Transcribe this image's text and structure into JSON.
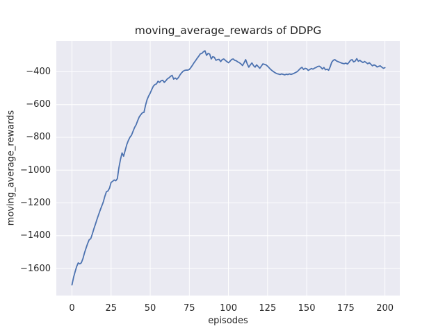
{
  "figure": {
    "title": "moving_average_rewards of DDPG",
    "xlabel": "episodes",
    "ylabel": "moving_average_rewards"
  },
  "chart_data": {
    "type": "line",
    "title": "moving_average_rewards of DDPG",
    "xlabel": "episodes",
    "ylabel": "moving_average_rewards",
    "xlim": [
      -10,
      209.5
    ],
    "ylim": [
      -1765,
      -212
    ],
    "grid": true,
    "legend": false,
    "xticks": {
      "values": [
        0,
        25,
        50,
        75,
        100,
        125,
        150,
        175,
        200
      ],
      "labels": [
        "0",
        "25",
        "50",
        "75",
        "100",
        "125",
        "150",
        "175",
        "200"
      ]
    },
    "yticks": {
      "values": [
        -400,
        -600,
        -800,
        -1000,
        -1200,
        -1400,
        -1600
      ],
      "labels": [
        "−400",
        "−600",
        "−800",
        "−1000",
        "−1200",
        "−1400",
        "−1600"
      ]
    },
    "style": {
      "axes_bg": "#EAEAF2",
      "grid_color": "#FFFFFF",
      "text_color": "#262626",
      "figure_bg": "#FFFFFF",
      "line_color": "#4C72B0",
      "line_width": 1.8
    },
    "series": [
      {
        "name": "moving_average_rewards",
        "color": "#4C72B0",
        "x": [
          0,
          1,
          2,
          3,
          4,
          5,
          6,
          7,
          8,
          9,
          10,
          11,
          12,
          13,
          14,
          15,
          16,
          17,
          18,
          19,
          20,
          21,
          22,
          23,
          24,
          25,
          26,
          27,
          28,
          29,
          30,
          31,
          32,
          33,
          34,
          35,
          36,
          37,
          38,
          39,
          40,
          41,
          42,
          43,
          44,
          45,
          46,
          47,
          48,
          49,
          50,
          51,
          52,
          53,
          54,
          55,
          56,
          57,
          58,
          59,
          60,
          61,
          62,
          63,
          64,
          65,
          66,
          67,
          68,
          69,
          70,
          71,
          72,
          73,
          74,
          75,
          76,
          77,
          78,
          79,
          80,
          81,
          82,
          83,
          84,
          85,
          86,
          87,
          88,
          89,
          90,
          91,
          92,
          93,
          94,
          95,
          96,
          97,
          98,
          99,
          100,
          101,
          102,
          103,
          104,
          105,
          106,
          107,
          108,
          109,
          110,
          111,
          112,
          113,
          114,
          115,
          116,
          117,
          118,
          119,
          120,
          121,
          122,
          123,
          124,
          125,
          126,
          127,
          128,
          129,
          130,
          131,
          132,
          133,
          134,
          135,
          136,
          137,
          138,
          139,
          140,
          141,
          142,
          143,
          144,
          145,
          146,
          147,
          148,
          149,
          150,
          151,
          152,
          153,
          154,
          155,
          156,
          157,
          158,
          159,
          160,
          161,
          162,
          163,
          164,
          165,
          166,
          167,
          168,
          169,
          170,
          171,
          172,
          173,
          174,
          175,
          176,
          177,
          178,
          179,
          180,
          181,
          182,
          183,
          184,
          185,
          186,
          187,
          188,
          189,
          190,
          191,
          192,
          193,
          194,
          195,
          196,
          197,
          198,
          199,
          200
        ],
        "values": [
          -1700,
          -1655,
          -1620,
          -1588,
          -1566,
          -1572,
          -1565,
          -1540,
          -1505,
          -1476,
          -1448,
          -1425,
          -1418,
          -1390,
          -1358,
          -1330,
          -1300,
          -1272,
          -1245,
          -1220,
          -1195,
          -1160,
          -1132,
          -1127,
          -1110,
          -1075,
          -1068,
          -1060,
          -1065,
          -1052,
          -985,
          -935,
          -895,
          -915,
          -880,
          -845,
          -820,
          -800,
          -788,
          -764,
          -740,
          -723,
          -698,
          -675,
          -662,
          -650,
          -648,
          -605,
          -570,
          -548,
          -530,
          -508,
          -488,
          -478,
          -474,
          -458,
          -465,
          -455,
          -452,
          -465,
          -455,
          -443,
          -437,
          -428,
          -422,
          -445,
          -438,
          -446,
          -436,
          -420,
          -407,
          -397,
          -392,
          -390,
          -390,
          -386,
          -374,
          -360,
          -345,
          -332,
          -318,
          -305,
          -291,
          -288,
          -278,
          -272,
          -300,
          -288,
          -292,
          -322,
          -308,
          -312,
          -330,
          -326,
          -324,
          -338,
          -326,
          -322,
          -330,
          -338,
          -345,
          -336,
          -325,
          -322,
          -330,
          -333,
          -340,
          -345,
          -352,
          -362,
          -345,
          -326,
          -352,
          -372,
          -358,
          -346,
          -362,
          -372,
          -358,
          -368,
          -379,
          -366,
          -352,
          -355,
          -358,
          -366,
          -376,
          -386,
          -394,
          -401,
          -407,
          -412,
          -414,
          -417,
          -413,
          -416,
          -419,
          -415,
          -417,
          -413,
          -416,
          -413,
          -409,
          -404,
          -399,
          -389,
          -379,
          -373,
          -386,
          -379,
          -382,
          -392,
          -386,
          -380,
          -384,
          -378,
          -374,
          -368,
          -366,
          -372,
          -383,
          -374,
          -388,
          -384,
          -391,
          -370,
          -342,
          -330,
          -326,
          -334,
          -338,
          -342,
          -346,
          -349,
          -351,
          -347,
          -353,
          -343,
          -330,
          -326,
          -340,
          -335,
          -320,
          -336,
          -330,
          -338,
          -344,
          -337,
          -344,
          -351,
          -345,
          -354,
          -364,
          -358,
          -362,
          -371,
          -367,
          -364,
          -372,
          -379,
          -375
        ]
      }
    ]
  }
}
